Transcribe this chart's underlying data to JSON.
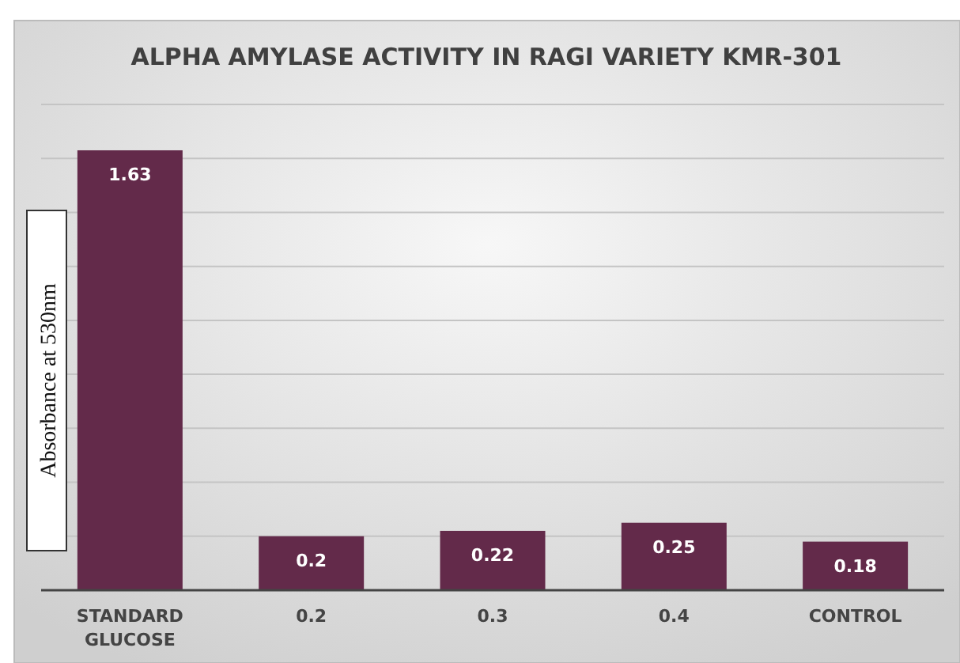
{
  "chart_data": {
    "type": "bar",
    "title": "ALPHA AMYLASE ACTIVITY IN RAGI VARIETY KMR-301",
    "ylabel": "Absorbance at 530nm",
    "categories": [
      "STANDARD GLUCOSE",
      "0.2",
      "0.3",
      "0.4",
      "CONTROL"
    ],
    "values": [
      1.63,
      0.2,
      0.22,
      0.25,
      0.18
    ],
    "color": "#632a4a",
    "data_labels": true,
    "ylim": [
      0,
      1.8
    ],
    "yticks": [
      {
        "value": 0,
        "label": null
      },
      {
        "value": 0.2,
        "label": null
      },
      {
        "value": 0.4,
        "label": null
      },
      {
        "value": 0.6,
        "label": null
      },
      {
        "value": 0.8,
        "label": null
      },
      {
        "value": 1,
        "label": null
      },
      {
        "value": 1.2,
        "label": null
      },
      {
        "value": 1.4,
        "label": null
      },
      {
        "value": 1.6,
        "label": null
      },
      {
        "value": 1.8,
        "label": null
      }
    ],
    "grid": "y",
    "tick_labels": "x"
  }
}
